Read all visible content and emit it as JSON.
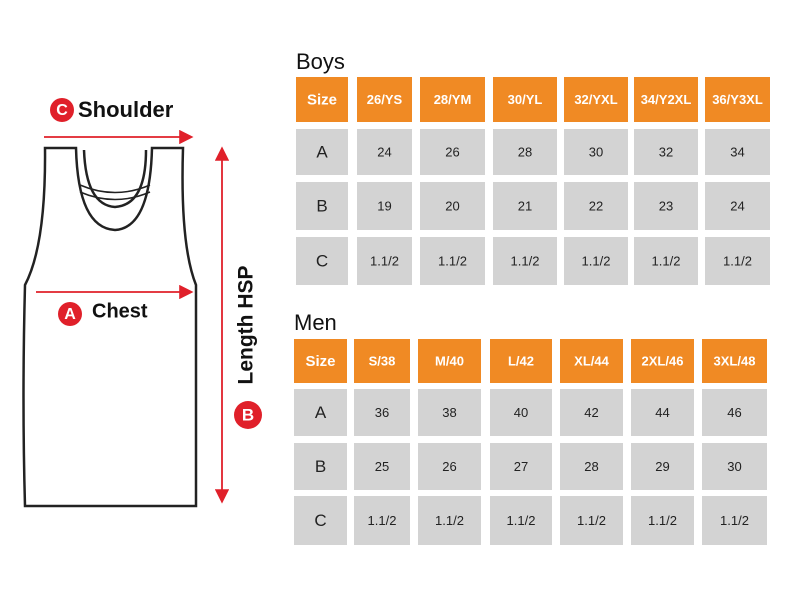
{
  "diagram": {
    "labels": [
      {
        "letter": "C",
        "text": "Shoulder"
      },
      {
        "letter": "A",
        "text": "Chest"
      },
      {
        "letter": "B",
        "text": "Length HSP"
      }
    ]
  },
  "tables": [
    {
      "title": "Boys",
      "header": [
        "Size",
        "26/YS",
        "28/YM",
        "30/YL",
        "32/YXL",
        "34/Y2XL",
        "36/Y3XL"
      ],
      "rows": [
        [
          "A",
          "24",
          "26",
          "28",
          "30",
          "32",
          "34"
        ],
        [
          "B",
          "19",
          "20",
          "21",
          "22",
          "23",
          "24"
        ],
        [
          "C",
          "1.1/2",
          "1.1/2",
          "1.1/2",
          "1.1/2",
          "1.1/2",
          "1.1/2"
        ]
      ]
    },
    {
      "title": "Men",
      "header": [
        "Size",
        "S/38",
        "M/40",
        "L/42",
        "XL/44",
        "2XL/46",
        "3XL/48"
      ],
      "rows": [
        [
          "A",
          "36",
          "38",
          "40",
          "42",
          "44",
          "46"
        ],
        [
          "B",
          "25",
          "26",
          "27",
          "28",
          "29",
          "30"
        ],
        [
          "C",
          "1.1/2",
          "1.1/2",
          "1.1/2",
          "1.1/2",
          "1.1/2",
          "1.1/2"
        ]
      ]
    }
  ]
}
